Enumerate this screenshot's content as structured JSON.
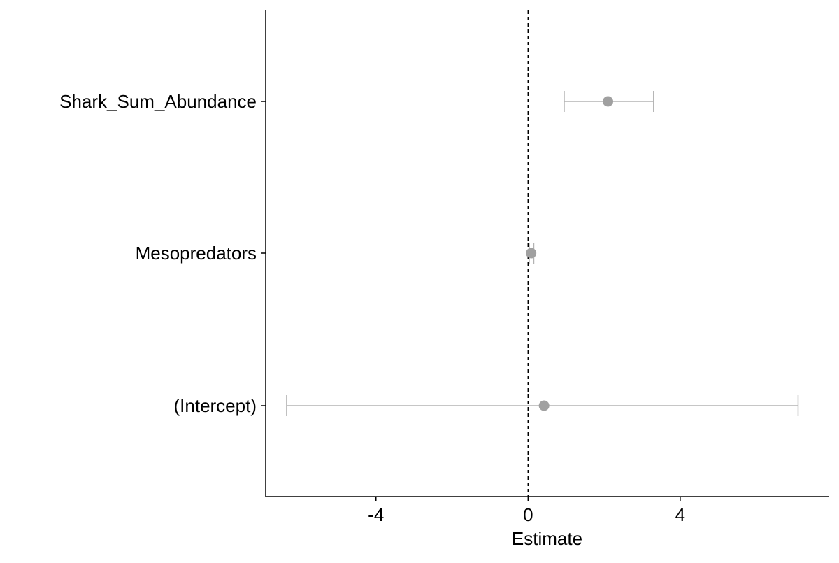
{
  "chart_data": {
    "type": "coefficient-plot",
    "xlabel": "Estimate",
    "ylabel": "",
    "xlim": [
      -6.9,
      7.9
    ],
    "x_ticks": [
      -4,
      0,
      4
    ],
    "x_tick_labels": [
      "-4",
      "0",
      "4"
    ],
    "reference_line": {
      "x": 0,
      "style": "dashed"
    },
    "grid": false,
    "categories": [
      "Shark_Sum_Abundance",
      "Mesopredators",
      "(Intercept)"
    ],
    "series": [
      {
        "points": [
          {
            "term": "Shark_Sum_Abundance",
            "estimate": 2.1,
            "low": 0.95,
            "high": 3.3
          },
          {
            "term": "Mesopredators",
            "estimate": 0.08,
            "low": 0.03,
            "high": 0.15
          },
          {
            "term": "(Intercept)",
            "estimate": 0.42,
            "low": -6.35,
            "high": 7.1
          }
        ]
      }
    ],
    "colors": {
      "point": "#a0a0a0",
      "errorbar": "#b3b3b3",
      "axis": "#000000",
      "reference": "#000000"
    }
  }
}
